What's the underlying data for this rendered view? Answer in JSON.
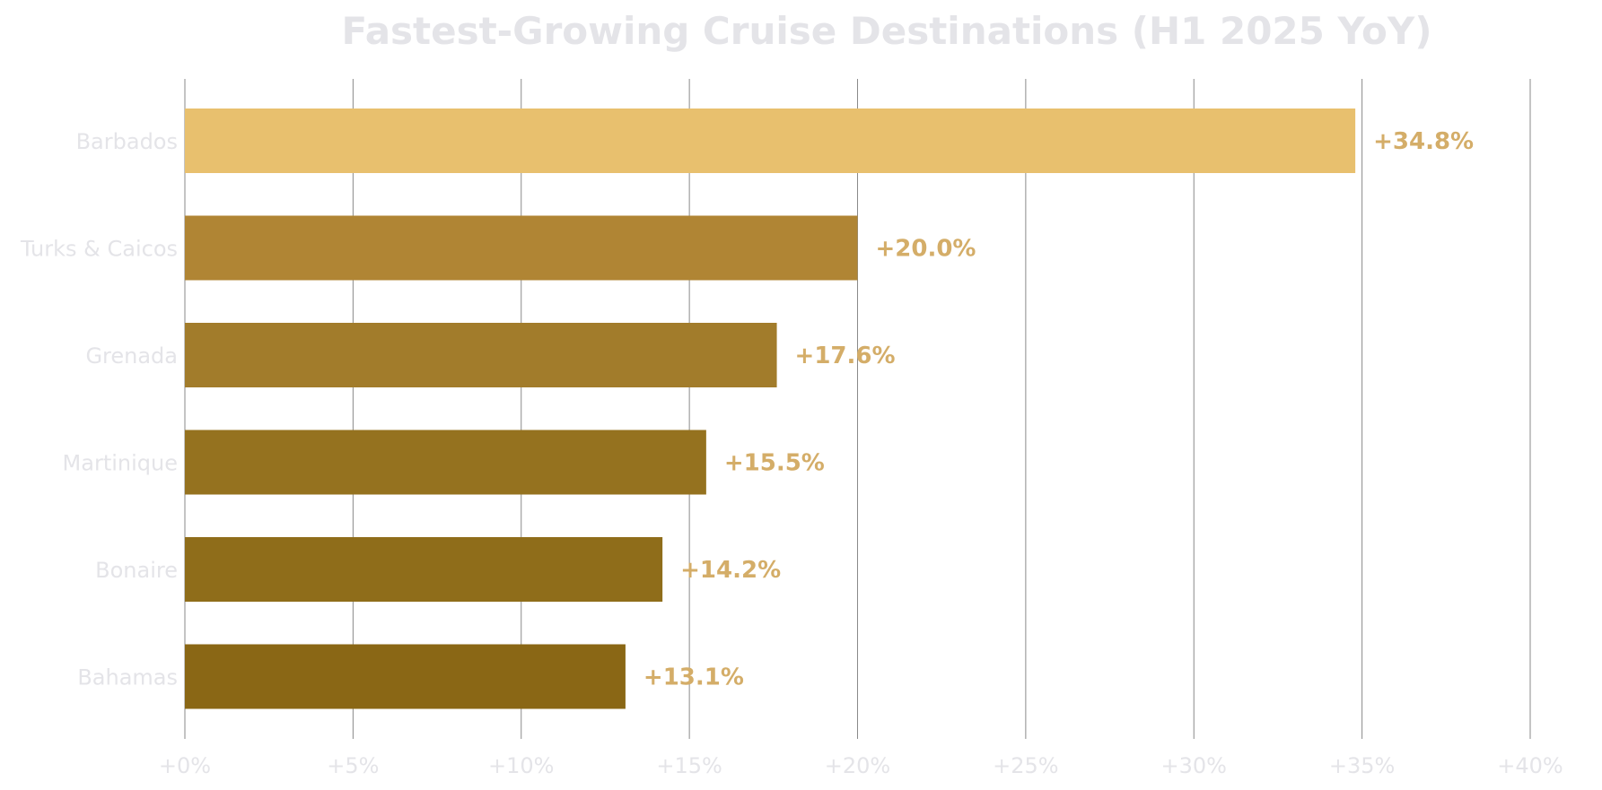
{
  "chart_data": {
    "type": "bar",
    "orientation": "horizontal",
    "title": "Fastest-Growing Cruise Destinations (H1 2025 YoY)",
    "xlabel": "",
    "ylabel": "",
    "categories": [
      "Barbados",
      "Turks & Caicos",
      "Grenada",
      "Martinique",
      "Bonaire",
      "Bahamas"
    ],
    "values": [
      34.8,
      20.0,
      17.6,
      15.5,
      14.2,
      13.1
    ],
    "data_labels": [
      "+34.8%",
      "+20.0%",
      "+17.6%",
      "+15.5%",
      "+14.2%",
      "+13.1%"
    ],
    "colors": [
      "#e8c06e",
      "#b08534",
      "#a27c2b",
      "#95721f",
      "#8f6d1a",
      "#8a6715"
    ],
    "xlim": [
      0,
      40
    ],
    "xticks": [
      0,
      5,
      10,
      15,
      20,
      25,
      30,
      35,
      40
    ],
    "xtick_labels": [
      "+0%",
      "+5%",
      "+10%",
      "+15%",
      "+20%",
      "+25%",
      "+30%",
      "+35%",
      "+40%"
    ],
    "grid": "vertical",
    "legend": "none",
    "label_color": "#d4ad68",
    "grid_color": "#8a8a8a"
  }
}
